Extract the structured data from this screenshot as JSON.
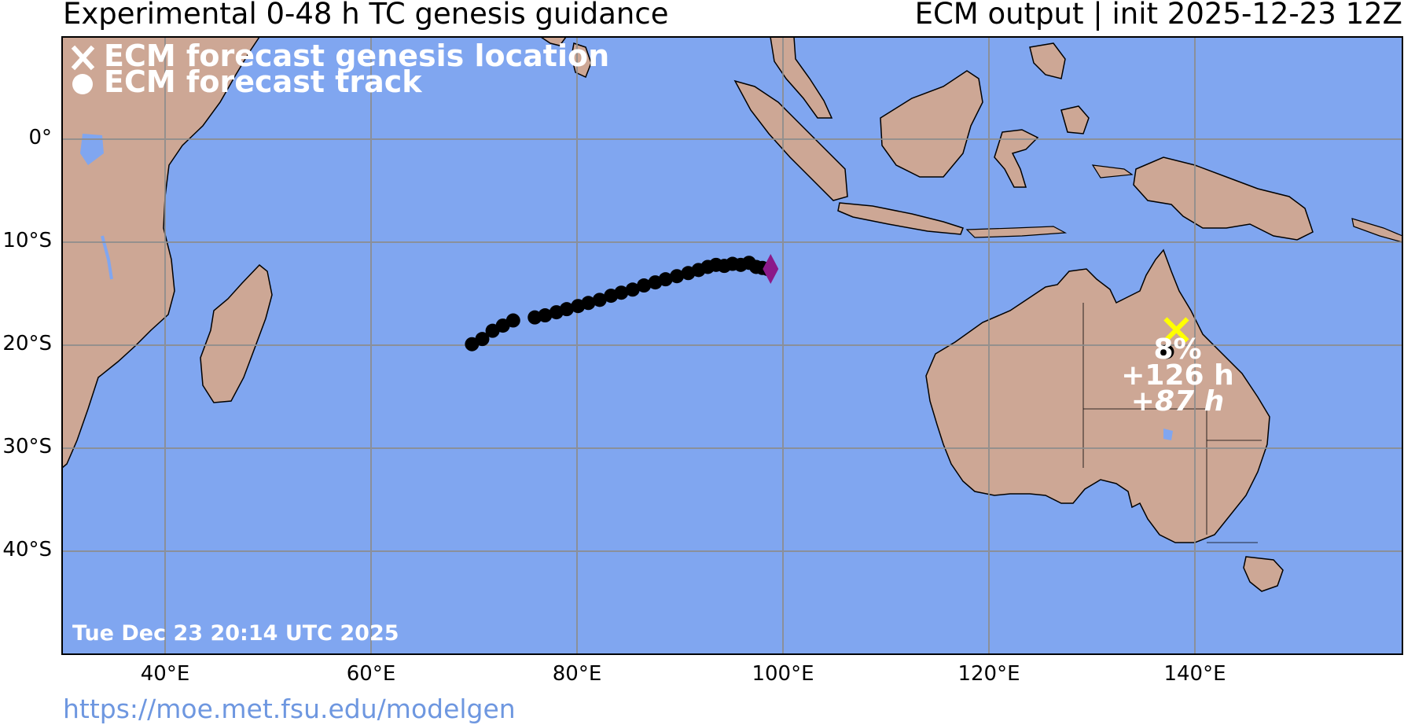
{
  "header": {
    "title_left": "Experimental 0-48 h TC genesis guidance",
    "title_right": "ECM output | init 2025-12-23 12Z"
  },
  "legend": {
    "genesis_label": "ECM forecast genesis location",
    "track_label": "ECM forecast track"
  },
  "timestamp": "Tue Dec 23 20:14 UTC 2025",
  "footer": {
    "url": "https://moe.met.fsu.edu/modelgen"
  },
  "axes": {
    "lat_labels": [
      "0°",
      "10°S",
      "20°S",
      "30°S",
      "40°S"
    ],
    "lon_labels": [
      "40°E",
      "60°E",
      "80°E",
      "100°E",
      "120°E",
      "140°E"
    ]
  },
  "genesis": {
    "probability": "8%",
    "lead_time": "+126 h",
    "lead_time_alt": "+87 h",
    "lon": 138.2,
    "lat": -18.5
  },
  "track": {
    "points": [
      [
        69.8,
        -19.9
      ],
      [
        70.8,
        -19.4
      ],
      [
        71.8,
        -18.6
      ],
      [
        72.8,
        -18.1
      ],
      [
        73.8,
        -17.6
      ],
      [
        75.9,
        -17.3
      ],
      [
        76.9,
        -17.1
      ],
      [
        78.0,
        -16.8
      ],
      [
        79.0,
        -16.5
      ],
      [
        80.1,
        -16.2
      ],
      [
        81.1,
        -15.9
      ],
      [
        82.2,
        -15.6
      ],
      [
        83.3,
        -15.2
      ],
      [
        84.3,
        -14.9
      ],
      [
        85.4,
        -14.6
      ],
      [
        86.5,
        -14.2
      ],
      [
        87.6,
        -13.9
      ],
      [
        88.6,
        -13.6
      ],
      [
        89.7,
        -13.3
      ],
      [
        90.8,
        -13.0
      ],
      [
        91.8,
        -12.7
      ],
      [
        92.7,
        -12.4
      ],
      [
        93.5,
        -12.2
      ],
      [
        94.3,
        -12.3
      ],
      [
        95.1,
        -12.1
      ],
      [
        95.9,
        -12.2
      ],
      [
        96.7,
        -12.0
      ],
      [
        97.4,
        -12.4
      ],
      [
        98.0,
        -12.5
      ],
      [
        98.5,
        -12.6
      ]
    ],
    "end_marker": {
      "lon": 98.8,
      "lat": -12.6
    }
  },
  "colors": {
    "ocean": "#80a6f0",
    "land": "#cda795",
    "grid": "#8c8c8c",
    "track": "#000000",
    "genesis_marker": "#ffff00",
    "end_marker": "#8b1a89",
    "text_overlay": "#ffffff",
    "link": "#6e97e0"
  }
}
